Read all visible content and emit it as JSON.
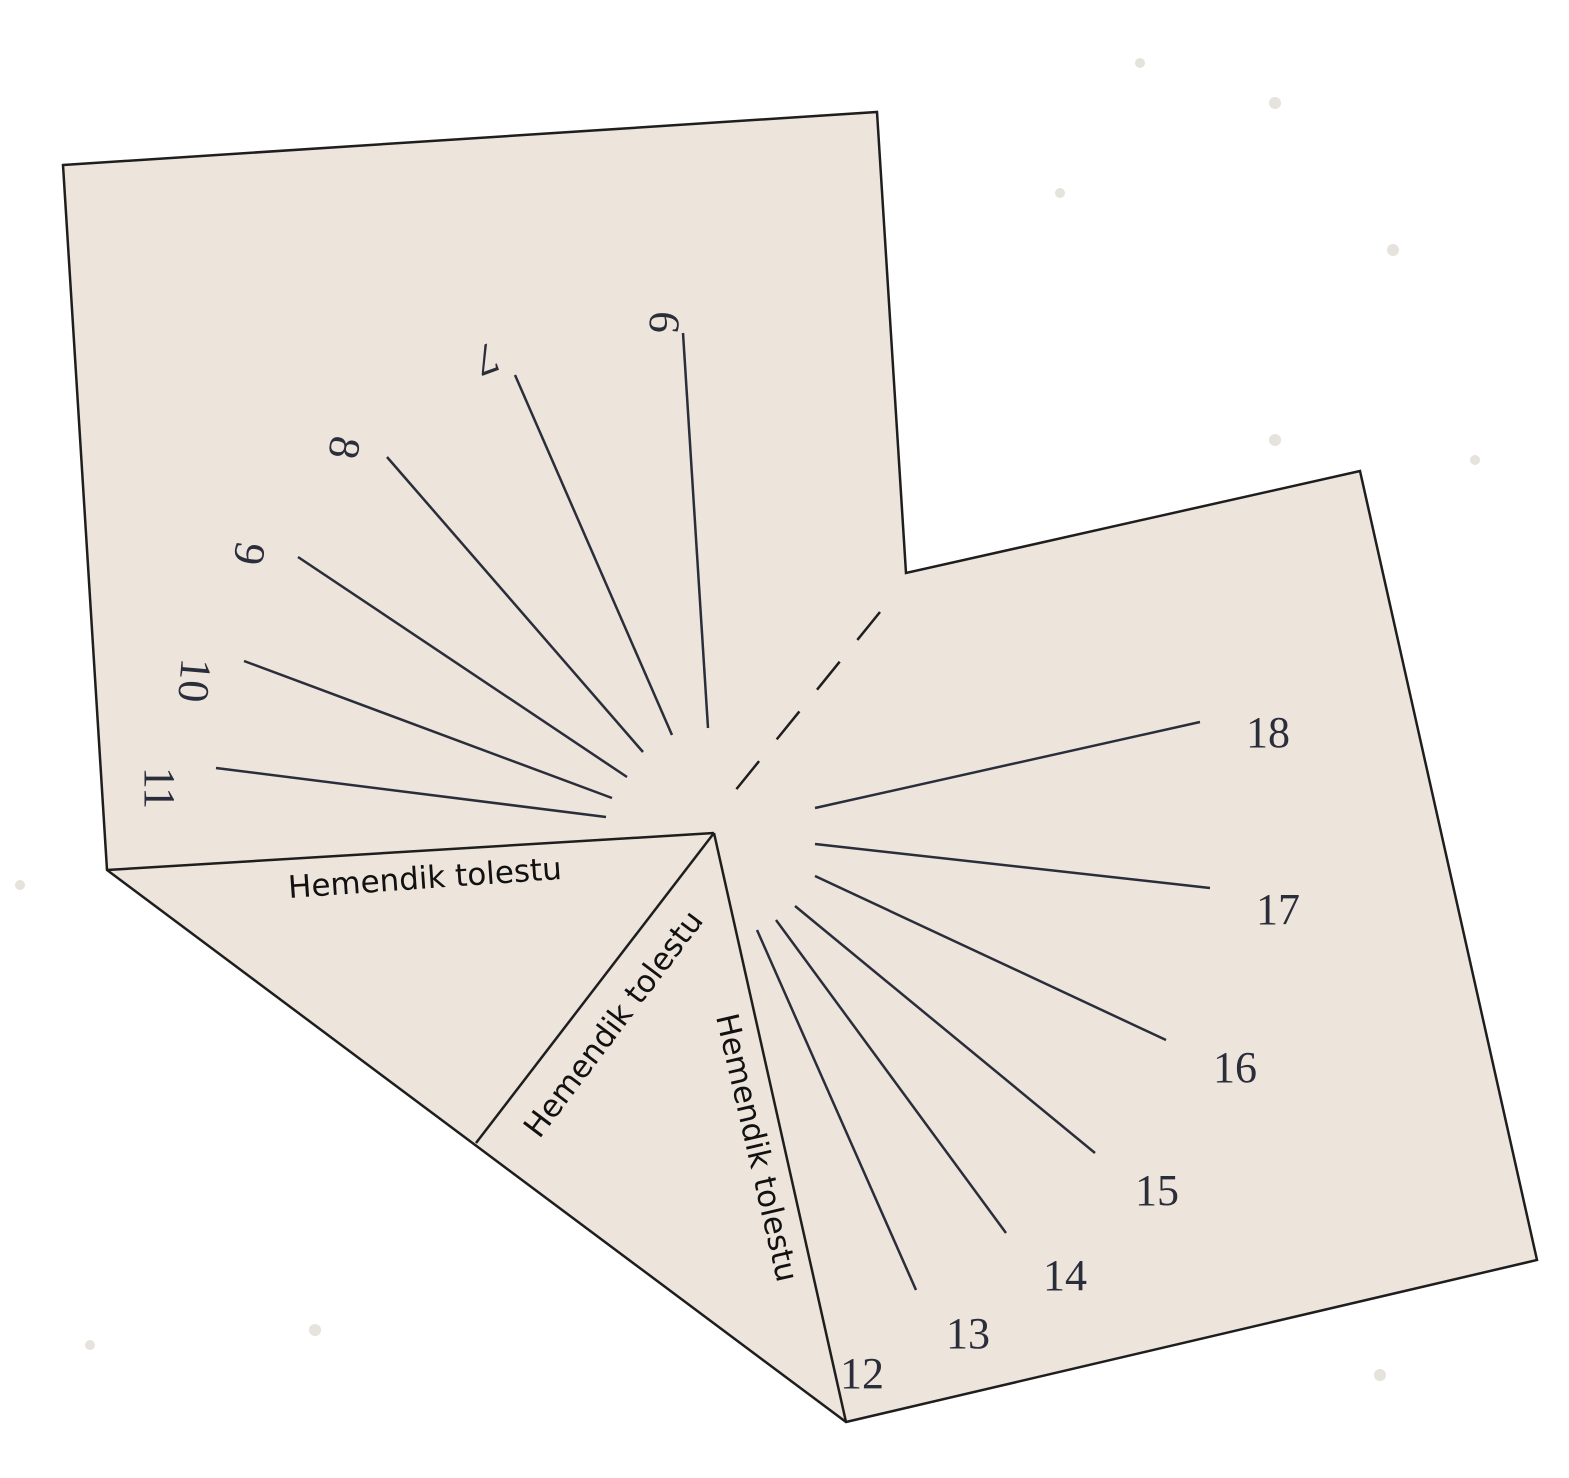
{
  "hours": [
    6,
    7,
    8,
    9,
    10,
    11,
    12,
    13,
    14,
    15,
    16,
    17,
    18
  ],
  "fold_labels": [
    "Hemendik tolestu",
    "Hemendik tolestu",
    "Hemendik tolestu"
  ]
}
